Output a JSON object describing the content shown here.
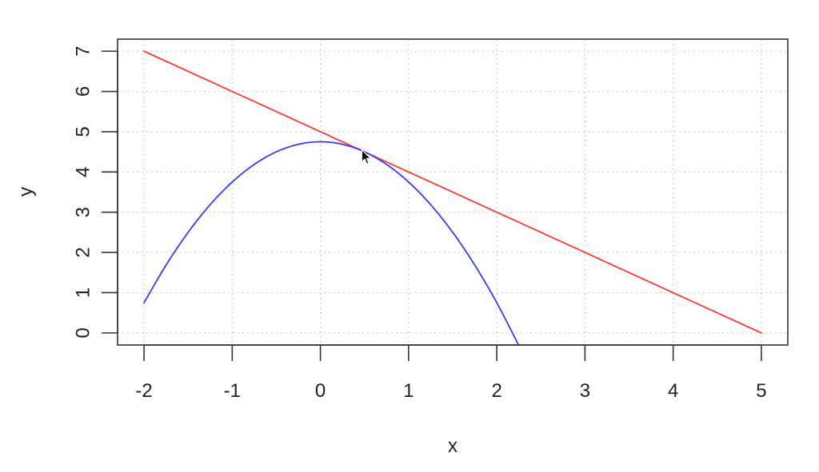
{
  "chart_data": {
    "type": "line",
    "title": "",
    "xlabel": "x",
    "ylabel": "y",
    "xlim": [
      -2.3,
      5.3
    ],
    "ylim": [
      -0.3,
      7.3
    ],
    "x_ticks": [
      -2,
      -1,
      0,
      1,
      2,
      3,
      4,
      5
    ],
    "y_ticks": [
      0,
      1,
      2,
      3,
      4,
      5,
      6,
      7
    ],
    "x_tick_labels": [
      "-2",
      "-1",
      "0",
      "1",
      "2",
      "3",
      "4",
      "5"
    ],
    "y_tick_labels": [
      "0",
      "1",
      "2",
      "3",
      "4",
      "5",
      "6",
      "7"
    ],
    "grid": true,
    "series": [
      {
        "color": "#ff3b30",
        "x": [
          -2,
          5
        ],
        "y": [
          7,
          0
        ]
      },
      {
        "color": "#3a3aff",
        "x": [
          -2,
          -1.75,
          -1.5,
          -1.25,
          -1,
          -0.75,
          -0.5,
          -0.25,
          0,
          0.25,
          0.5,
          0.75,
          1,
          1.25,
          1.5,
          1.75,
          2,
          2.25
        ],
        "y": [
          0.75,
          1.6875,
          2.5,
          3.1875,
          3.75,
          4.1875,
          4.5,
          4.6875,
          4.75,
          4.6875,
          4.5,
          4.1875,
          3.75,
          3.1875,
          2.5,
          1.6875,
          0.75,
          -0.3125
        ]
      }
    ],
    "cursor": {
      "x": 0.47,
      "y": 4.55
    }
  }
}
